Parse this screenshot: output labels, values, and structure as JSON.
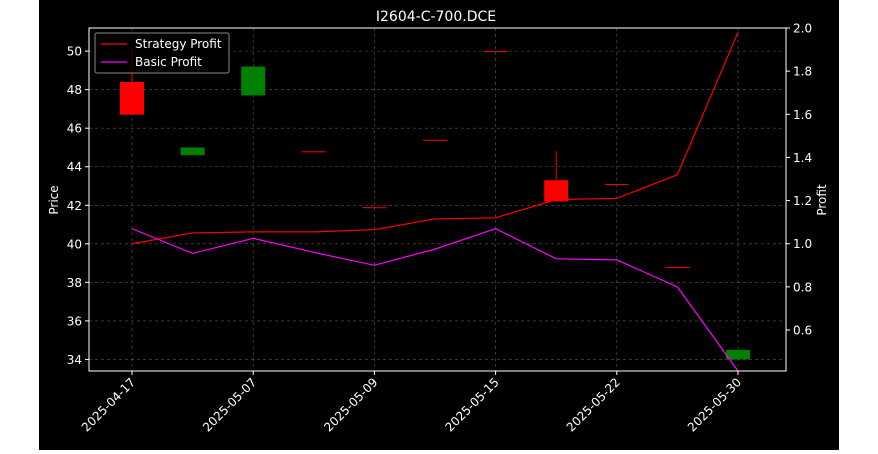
{
  "chart_data": {
    "type": "candlestick",
    "title": "I2604-C-700.DCE",
    "xlabel": "",
    "ylabel": "Price",
    "y2label": "Profit",
    "ylim": [
      33.4,
      51.2
    ],
    "y2lim": [
      0.41,
      2.0
    ],
    "yticks": [
      34,
      36,
      38,
      40,
      42,
      44,
      46,
      48,
      50
    ],
    "y2ticks": [
      "0.6",
      "0.8",
      "1.0",
      "1.2",
      "1.4",
      "1.6",
      "1.8",
      "2.0"
    ],
    "x_tick_labels": [
      "2025-04-17",
      "2025-05-07",
      "2025-05-09",
      "2025-05-15",
      "2025-05-22",
      "2025-05-30"
    ],
    "x_tick_indices": [
      0,
      2,
      4,
      6,
      8,
      10
    ],
    "grid": true,
    "legend_position": "top-left",
    "candles": [
      {
        "open": 48.4,
        "high": 50.2,
        "low": 46.7,
        "close": 46.7
      },
      {
        "open": 44.6,
        "high": 45.0,
        "low": 44.6,
        "close": 45.0
      },
      {
        "open": 47.7,
        "high": 49.2,
        "low": 47.7,
        "close": 49.2
      },
      {
        "open": 44.8,
        "high": 44.8,
        "low": 44.8,
        "close": 44.8
      },
      {
        "open": 41.9,
        "high": 41.9,
        "low": 41.9,
        "close": 41.9
      },
      {
        "open": 45.4,
        "high": 45.4,
        "low": 45.4,
        "close": 45.4
      },
      {
        "open": 50.0,
        "high": 50.0,
        "low": 50.0,
        "close": 50.0
      },
      {
        "open": 43.3,
        "high": 44.8,
        "low": 42.2,
        "close": 42.2
      },
      {
        "open": 43.1,
        "high": 43.1,
        "low": 43.1,
        "close": 43.1
      },
      {
        "open": 38.8,
        "high": 38.8,
        "low": 38.8,
        "close": 38.8
      },
      {
        "open": 34.0,
        "high": 34.5,
        "low": 34.0,
        "close": 34.5
      }
    ],
    "series": [
      {
        "name": "Strategy Profit",
        "color": "#ff0000",
        "values": [
          1.0,
          1.05,
          1.055,
          1.055,
          1.065,
          1.115,
          1.12,
          1.205,
          1.21,
          1.32,
          1.98
        ]
      },
      {
        "name": "Basic Profit",
        "color": "#ff00ff",
        "values": [
          1.07,
          0.955,
          1.025,
          0.96,
          0.9,
          0.975,
          1.07,
          0.93,
          0.925,
          0.8,
          0.41
        ]
      }
    ],
    "up_color": "#008000",
    "down_color": "#ff0000"
  }
}
